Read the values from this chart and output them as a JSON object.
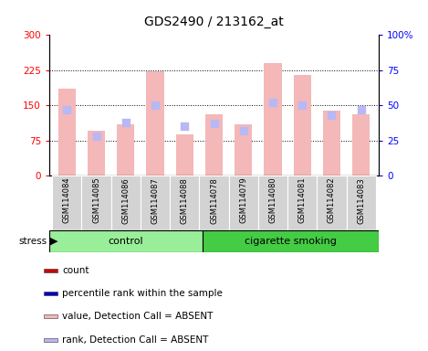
{
  "title": "GDS2490 / 213162_at",
  "samples": [
    "GSM114084",
    "GSM114085",
    "GSM114086",
    "GSM114087",
    "GSM114088",
    "GSM114078",
    "GSM114079",
    "GSM114080",
    "GSM114081",
    "GSM114082",
    "GSM114083"
  ],
  "bar_values": [
    185,
    95,
    110,
    222,
    88,
    130,
    110,
    240,
    215,
    138,
    130
  ],
  "rank_values": [
    47,
    28,
    38,
    50,
    35,
    37,
    32,
    52,
    50,
    43,
    47
  ],
  "bar_color_absent": "#f4b8b8",
  "rank_color_absent": "#b8b8f4",
  "ylim_left": [
    0,
    300
  ],
  "ylim_right": [
    0,
    100
  ],
  "yticks_left": [
    0,
    75,
    150,
    225,
    300
  ],
  "yticks_right": [
    0,
    25,
    50,
    75,
    100
  ],
  "ytick_labels_right": [
    "0",
    "25",
    "50",
    "75",
    "100%"
  ],
  "grid_values": [
    75,
    150,
    225
  ],
  "control_color": "#99ee99",
  "smoking_color": "#44cc44",
  "group_label_control": "control",
  "group_label_smoking": "cigarette smoking",
  "stress_label": "stress",
  "n_control": 5,
  "legend_items": [
    {
      "label": "count",
      "color": "#cc0000"
    },
    {
      "label": "percentile rank within the sample",
      "color": "#0000bb"
    },
    {
      "label": "value, Detection Call = ABSENT",
      "color": "#f4b8b8"
    },
    {
      "label": "rank, Detection Call = ABSENT",
      "color": "#b8b8f4"
    }
  ],
  "bar_width": 0.6,
  "title_fontsize": 10,
  "tick_fontsize": 7.5,
  "legend_fontsize": 7.5,
  "sample_fontsize": 6,
  "group_fontsize": 8
}
